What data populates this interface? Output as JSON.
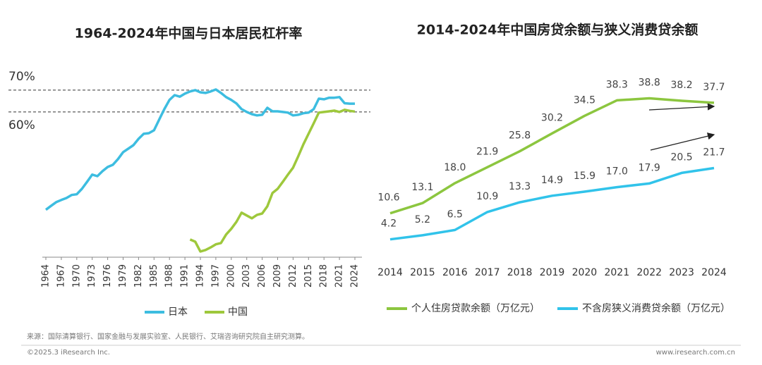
{
  "chart_data": [
    {
      "type": "line",
      "title": "1964-2024年中国与日本居民杠杆率",
      "x": [
        1964,
        1965,
        1966,
        1967,
        1968,
        1969,
        1970,
        1971,
        1972,
        1973,
        1974,
        1975,
        1976,
        1977,
        1978,
        1979,
        1980,
        1981,
        1982,
        1983,
        1984,
        1985,
        1986,
        1987,
        1988,
        1989,
        1990,
        1991,
        1992,
        1993,
        1994,
        1995,
        1996,
        1997,
        1998,
        1999,
        2000,
        2001,
        2002,
        2003,
        2004,
        2005,
        2006,
        2007,
        2008,
        2009,
        2010,
        2011,
        2012,
        2013,
        2014,
        2015,
        2016,
        2017,
        2018,
        2019,
        2020,
        2021,
        2022,
        2023,
        2024
      ],
      "series": [
        {
          "name": "日本",
          "color": "#3dbde0",
          "values": [
            15.2,
            17,
            18.7,
            19.7,
            20.6,
            22,
            22.3,
            24.8,
            28,
            31.3,
            30.6,
            32.9,
            34.8,
            35.8,
            38.4,
            41.6,
            43.2,
            44.8,
            47.7,
            50,
            50.3,
            51.6,
            56.5,
            61.3,
            65.5,
            67.7,
            67,
            68.4,
            69.4,
            70,
            69,
            68.7,
            69.4,
            70.3,
            68.7,
            66.8,
            65.5,
            63.9,
            61.3,
            60,
            59,
            58.4,
            58.7,
            61.9,
            60.3,
            60.3,
            60,
            59.7,
            58.4,
            58.7,
            59.4,
            59.7,
            61.3,
            66.1,
            65.8,
            66.5,
            66.5,
            66.8,
            64,
            63.8,
            63.8
          ]
        },
        {
          "name": "中国",
          "color": "#9ec83c",
          "values": [
            null,
            null,
            null,
            null,
            null,
            null,
            null,
            null,
            null,
            null,
            null,
            null,
            null,
            null,
            null,
            null,
            null,
            null,
            null,
            null,
            null,
            null,
            null,
            null,
            null,
            null,
            null,
            null,
            1.6,
            0.6,
            -3.9,
            -3.2,
            -2,
            -0.6,
            0,
            3.9,
            6.5,
            9.7,
            13.9,
            12.6,
            11.3,
            12.9,
            13.5,
            16.8,
            22.9,
            24.8,
            28,
            31.3,
            34.5,
            39.7,
            45.2,
            50,
            54.8,
            59.7,
            60,
            60.3,
            60.6,
            60,
            61,
            60.5,
            60.2
          ]
        }
      ],
      "xlim": [
        1964,
        2024
      ],
      "xticks": [
        1964,
        1967,
        1970,
        1973,
        1976,
        1979,
        1982,
        1985,
        1988,
        1991,
        1994,
        1997,
        2000,
        2003,
        2006,
        2009,
        2012,
        2015,
        2018,
        2021,
        2024
      ],
      "ylim": [
        -6.5,
        79
      ],
      "yticks": [
        {
          "value": 70,
          "label": "70%"
        },
        {
          "value": 60,
          "label": "60%"
        }
      ],
      "grid": true
    },
    {
      "type": "line",
      "title": "2014-2024年中国房贷余额与狭义消费贷余额",
      "categories": [
        "2014",
        "2015",
        "2016",
        "2017",
        "2018",
        "2019",
        "2020",
        "2021",
        "2022",
        "2023",
        "2024"
      ],
      "series": [
        {
          "name": "个人住房贷款余额（万亿元）",
          "color": "#8cc63f",
          "values": [
            10.6,
            13.1,
            18.0,
            21.9,
            25.8,
            30.2,
            34.5,
            38.3,
            38.8,
            38.2,
            37.7
          ],
          "value_labels": [
            "10.6",
            "13.1",
            "18.0",
            "21.9",
            "25.8",
            "30.2",
            "34.5",
            "38.3",
            "38.8",
            "38.2",
            "37.7"
          ]
        },
        {
          "name": "不含房狭义消费贷余额（万亿元）",
          "color": "#31c3ea",
          "values": [
            4.2,
            5.2,
            6.5,
            10.9,
            13.3,
            14.9,
            15.9,
            17.0,
            17.9,
            20.5,
            21.7
          ],
          "value_labels": [
            "4.2",
            "5.2",
            "6.5",
            "10.9",
            "13.3",
            "14.9",
            "15.9",
            "17.0",
            "17.9",
            "20.5",
            "21.7"
          ]
        }
      ],
      "ylim": [
        0,
        42
      ]
    }
  ],
  "footer": {
    "source": "来源：国际清算银行、国家金融与发展实验室、人民银行、艾瑞咨询研究院自主研究测算。",
    "copyright": "©2025.3 iResearch Inc.",
    "website": "www.iresearch.com.cn"
  }
}
